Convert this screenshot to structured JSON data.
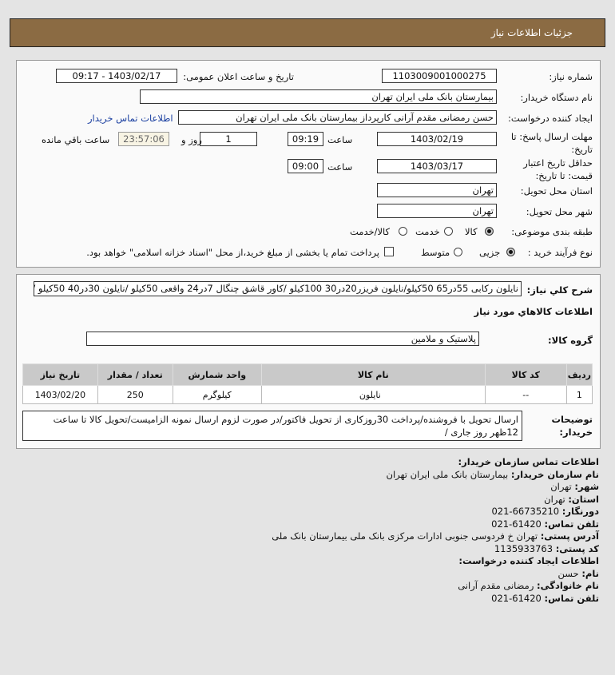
{
  "header": {
    "title": "جزئیات اطلاعات نیاز"
  },
  "form": {
    "need_number_label": "شماره نیاز:",
    "need_number": "1103009001000275",
    "announce_label": "تاریخ و ساعت اعلان عمومی:",
    "announce_value": "1403/02/17 - 09:17",
    "buyer_label": "نام دستگاه خریدار:",
    "buyer": "بیمارستان بانک ملی ایران تهران",
    "creator_label": "ایجاد کننده درخواست:",
    "creator": "حسن رمضانی مقدم آرانی کارپرداز بیمارستان بانک ملی ایران تهران",
    "contact_link": "اطلاعات تماس خریدار",
    "deadline_label": "مهلت ارسال پاسخ: تا تاریخ:",
    "deadline_date": "1403/02/19",
    "time_label": "ساعت",
    "deadline_time": "09:19",
    "days": "1",
    "days_label": "روز و",
    "remaining": "23:57:06",
    "remaining_label": "ساعت باقي مانده",
    "validity_label": "حداقل تاریخ اعتبار قیمت: تا تاریخ:",
    "validity_date": "1403/03/17",
    "validity_time": "09:00",
    "province_label": "استان محل تحویل:",
    "province": "تهران",
    "city_label": "شهر محل تحویل:",
    "city": "تهران",
    "category_label": "طبقه بندی موضوعی:",
    "category_options": [
      "کالا",
      "خدمت",
      "کالا/خدمت"
    ],
    "category_selected": "کالا",
    "process_label": "نوع فرآیند خرید :",
    "process_options": [
      "جزیی",
      "متوسط"
    ],
    "process_selected": "جزیی",
    "payment_checkbox": "پرداخت تمام یا بخشی از مبلغ خرید،از محل \"اسناد خزانه اسلامی\" خواهد بود."
  },
  "details": {
    "summary_label": "شرح کلي نیاز:",
    "summary": "نایلون رکابی 55در65 50کیلو/نایلون فریزر20در30 100کیلو /کاور قاشق چنگال 7در24 واقعی 50کیلو /نایلون 30در40 50کیلو /",
    "goods_heading": "اطلاعات کالاهاي مورد نیاز",
    "group_label": "گروه کالا:",
    "group": "پلاستیک و ملامین",
    "table": {
      "headers": [
        "ردیف",
        "کد کالا",
        "نام کالا",
        "واحد شمارش",
        "تعداد / مقدار",
        "تاریخ نیاز"
      ],
      "rows": [
        [
          "1",
          "--",
          "نایلون",
          "کیلوگرم",
          "250",
          "1403/02/20"
        ]
      ]
    },
    "notes_label": "توضیحات خریدار:",
    "notes": "ارسال تحویل با فروشنده/پرداخت 30روزکاری از تحویل فاکتور/در صورت لزوم ارسال نمونه الزامیست/تحویل کالا تا ساعت 12ظهر روز جاری /"
  },
  "contact": {
    "heading": "اطلاعات تماس سازمان خریدار:",
    "items": [
      {
        "k": "نام سازمان خریدار:",
        "v": "بیمارستان بانک ملی ایران تهران"
      },
      {
        "k": "شهر:",
        "v": "تهران"
      },
      {
        "k": "استان:",
        "v": "تهران"
      },
      {
        "k": "دورنگار:",
        "v": "66735210-021"
      },
      {
        "k": "تلفن تماس:",
        "v": "61420-021"
      },
      {
        "k": "آدرس پستی:",
        "v": "تهران خ فردوسی جنوبی ادارات مرکزی بانک ملی بیمارستان بانک ملی"
      },
      {
        "k": "کد پستی:",
        "v": "1135933763"
      }
    ],
    "creator_heading": "اطلاعات ایجاد کننده درخواست:",
    "creator_items": [
      {
        "k": "نام:",
        "v": "حسن"
      },
      {
        "k": "نام خانوادگی:",
        "v": "رمضانی مقدم آرانی"
      },
      {
        "k": "تلفن تماس:",
        "v": "61420-021"
      }
    ]
  }
}
